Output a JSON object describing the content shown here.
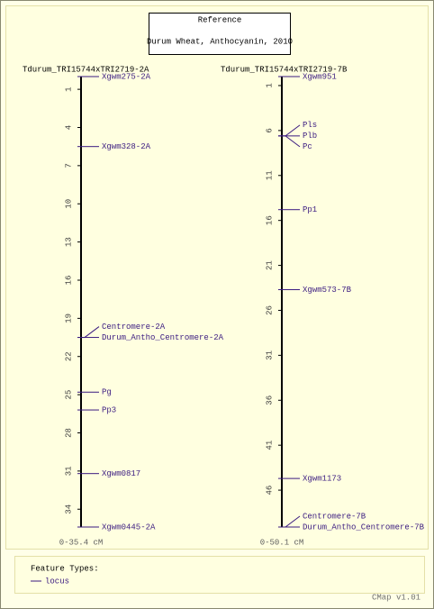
{
  "reference": {
    "title": "Reference",
    "subtitle": "Durum Wheat, Anthocyanin, 2010"
  },
  "maps": [
    {
      "name": "Tdurum_TRI15744xTRI2719-2A",
      "range": [
        0,
        35.4
      ],
      "range_label": "0-35.4 cM",
      "ticks": [
        1,
        4,
        7,
        10,
        13,
        16,
        19,
        22,
        25,
        28,
        31,
        34
      ],
      "features": [
        {
          "name": "Xgwm275-2A",
          "position": 0
        },
        {
          "name": "Xgwm328-2A",
          "position": 5.5
        },
        {
          "name": "Centromere-2A",
          "position": 20.5
        },
        {
          "name": "Durum_Antho_Centromere-2A",
          "position": 20.5
        },
        {
          "name": "Pg",
          "position": 24.8
        },
        {
          "name": "Pp3",
          "position": 26.2
        },
        {
          "name": "Xgwm0817",
          "position": 31.2
        },
        {
          "name": "Xgwm0445-2A",
          "position": 35.4
        }
      ]
    },
    {
      "name": "Tdurum_TRI15744xTRI2719-7B",
      "range": [
        0,
        50.1
      ],
      "range_label": "0-50.1 cM",
      "ticks": [
        1,
        6,
        11,
        16,
        21,
        26,
        31,
        36,
        41,
        46
      ],
      "features": [
        {
          "name": "Xgwm951",
          "position": 0
        },
        {
          "name": "Pls",
          "position": 6.6
        },
        {
          "name": "Plb",
          "position": 6.6
        },
        {
          "name": "Pc",
          "position": 6.6
        },
        {
          "name": "Pp1",
          "position": 14.8
        },
        {
          "name": "Xgwm573-7B",
          "position": 23.7
        },
        {
          "name": "Xgwm1173",
          "position": 44.7
        },
        {
          "name": "Centromere-7B",
          "position": 50.1
        },
        {
          "name": "Durum_Antho_Centromere-7B",
          "position": 50.1
        }
      ]
    }
  ],
  "legend": {
    "title": "Feature Types:",
    "items": [
      "locus"
    ]
  },
  "footer": "CMap v1.01"
}
